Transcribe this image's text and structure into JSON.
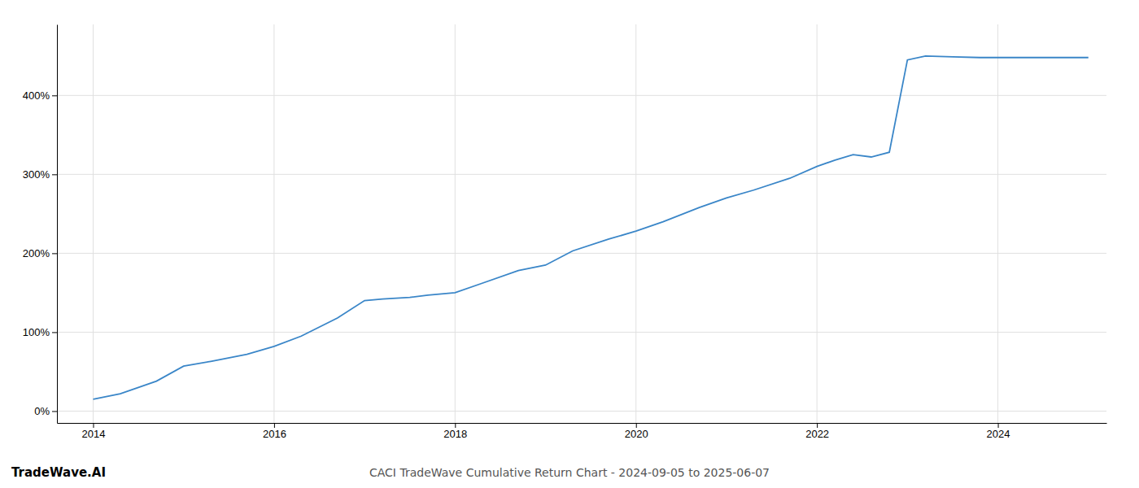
{
  "chart_data": {
    "type": "line",
    "title": "CACI TradeWave Cumulative Return Chart - 2024-09-05 to 2025-06-07",
    "annotations": [
      "TradeWave.AI"
    ],
    "x": [
      2014.0,
      2014.3,
      2014.7,
      2015.0,
      2015.3,
      2015.7,
      2016.0,
      2016.3,
      2016.7,
      2017.0,
      2017.2,
      2017.5,
      2017.7,
      2018.0,
      2018.3,
      2018.7,
      2019.0,
      2019.3,
      2019.7,
      2020.0,
      2020.3,
      2020.7,
      2021.0,
      2021.3,
      2021.7,
      2022.0,
      2022.2,
      2022.4,
      2022.6,
      2022.8,
      2023.0,
      2023.2,
      2023.5,
      2023.8,
      2024.0,
      2024.3,
      2024.7,
      2025.0
    ],
    "values": [
      15,
      22,
      38,
      57,
      63,
      72,
      82,
      95,
      118,
      140,
      142,
      144,
      147,
      150,
      162,
      178,
      185,
      203,
      218,
      228,
      240,
      258,
      270,
      280,
      295,
      310,
      318,
      325,
      322,
      328,
      445,
      450,
      449,
      448,
      448,
      448,
      448,
      448
    ],
    "color": "#3a86c8",
    "xlim": [
      2013.6,
      2025.2
    ],
    "ylim": [
      -15,
      490
    ],
    "xticks": [
      2014,
      2016,
      2018,
      2020,
      2022,
      2024
    ],
    "yticks": [
      {
        "value": 0,
        "label": "0%"
      },
      {
        "value": 100,
        "label": "100%"
      },
      {
        "value": 200,
        "label": "200%"
      },
      {
        "value": 300,
        "label": "300%"
      },
      {
        "value": 400,
        "label": "400%"
      }
    ],
    "grid": true
  }
}
